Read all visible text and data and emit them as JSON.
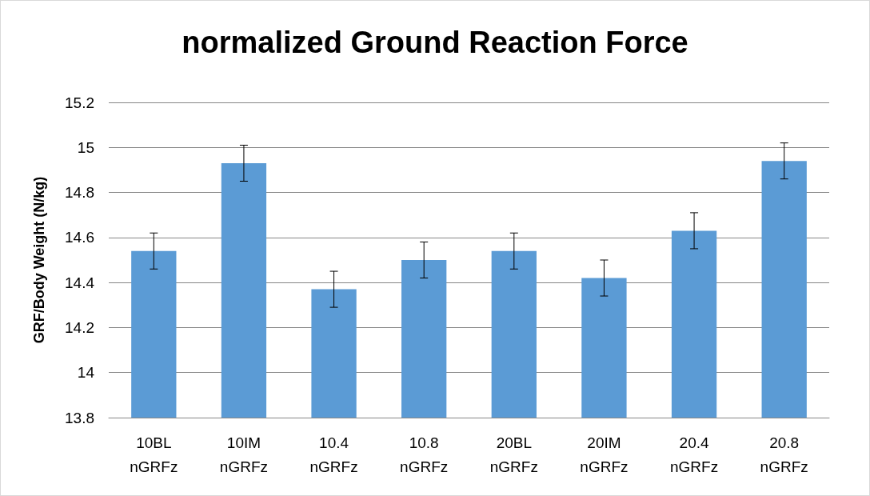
{
  "chart_data": {
    "type": "bar",
    "title": "normalized Ground Reaction Force",
    "ylabel": "GRF/Body Weight (N/kg)",
    "categories": [
      "10BL\nnGRFz",
      "10IM\nnGRFz",
      "10.4\nnGRFz",
      "10.8\nnGRFz",
      "20BL\nnGRFz",
      "20IM\nnGRFz",
      "20.4\nnGRFz",
      "20.8\nnGRFz"
    ],
    "values": [
      14.54,
      14.93,
      14.37,
      14.5,
      14.54,
      14.42,
      14.63,
      14.94
    ],
    "errors": [
      0.08,
      0.08,
      0.08,
      0.08,
      0.08,
      0.08,
      0.08,
      0.08
    ],
    "color": "#5b9bd5",
    "ylim": [
      13.8,
      15.2
    ],
    "yticks": [
      13.8,
      14,
      14.2,
      14.4,
      14.6,
      14.8,
      15,
      15.2
    ],
    "grid": "y",
    "legend": false
  }
}
